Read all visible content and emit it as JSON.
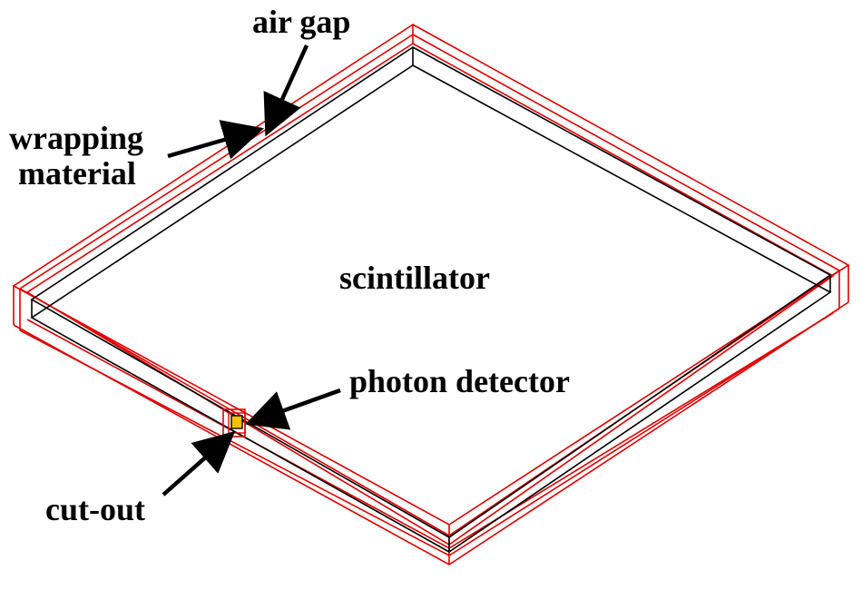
{
  "labels": {
    "air_gap": "air gap",
    "wrapping_line1": "wrapping",
    "wrapping_line2": "material",
    "scintillator": "scintillator",
    "photon_detector": "photon detector",
    "cut_out": "cut-out"
  },
  "colors": {
    "wrapping": "#e00000",
    "scintillator_edge": "#000000",
    "detector": "#f2c200",
    "arrow": "#000000",
    "background": "#ffffff"
  }
}
